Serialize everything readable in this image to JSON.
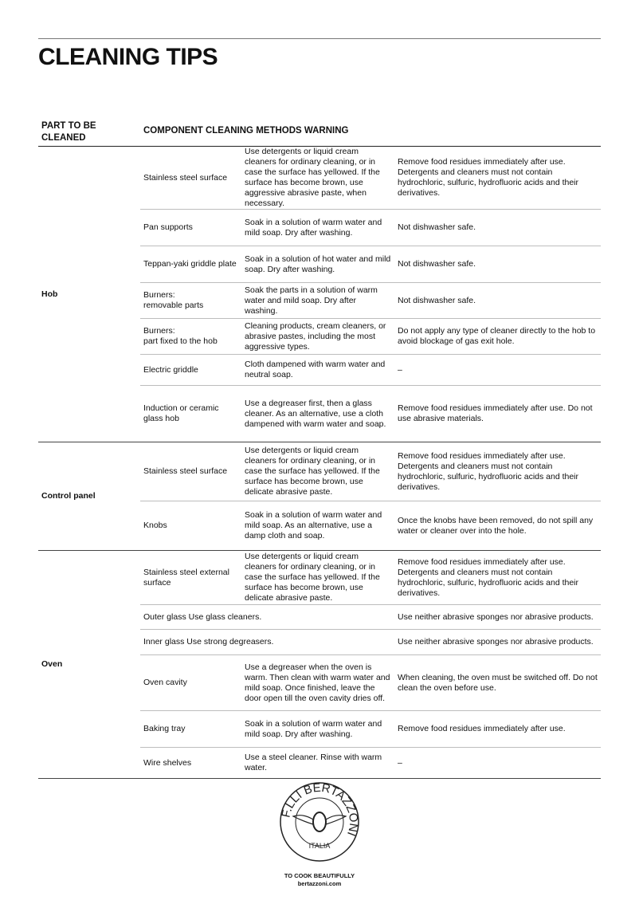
{
  "title": "CLEANING TIPS",
  "header": {
    "part": "PART TO BE CLEANED",
    "rest": "COMPONENT CLEANING METHODS WARNING"
  },
  "groups": [
    {
      "part": "Hob",
      "rows": [
        {
          "component": "Stainless steel surface",
          "method": "Use detergents or liquid cream cleaners for ordinary cleaning, or in case the surface has yellowed. If the surface has become brown, use aggressive abrasive paste, when necessary.",
          "warning": "Remove food residues immediately after use. Detergents and cleaners must not contain hydrochloric, sulfuric, hydrofluoric acids and their derivatives."
        },
        {
          "component": "Pan supports",
          "method": "Soak in a solution of warm water and mild soap. Dry after washing.",
          "warning": "Not dishwasher safe."
        },
        {
          "component": "Teppan-yaki griddle plate",
          "method": "Soak in a solution of hot water and mild soap. Dry after washing.",
          "warning": "Not dishwasher safe."
        },
        {
          "component": "Burners:\nremovable parts",
          "method": "Soak the parts in a solution of warm water and mild soap. Dry after washing.",
          "warning": "Not dishwasher safe."
        },
        {
          "component": "Burners:\npart fixed to the hob",
          "method": "Cleaning products, cream cleaners, or abrasive pastes, including the most aggressive types.",
          "warning": "Do not apply any type of cleaner directly to the hob to avoid blockage of gas exit hole."
        },
        {
          "component": "Electric griddle",
          "method": "Cloth dampened with warm water and neutral soap.",
          "warning": "–"
        },
        {
          "component": "Induction or ceramic glass hob",
          "method": "Use a degreaser first, then a glass cleaner. As an alternative, use a cloth dampened with warm water and soap.",
          "warning": "Remove food residues immediately after use. Do not use abrasive materials."
        }
      ]
    },
    {
      "part": "Control panel",
      "rows": [
        {
          "component": "Stainless steel surface",
          "method": "Use detergents or liquid cream cleaners for ordinary cleaning, or in case the surface has yellowed. If the surface has become brown, use delicate abrasive paste.",
          "warning": "Remove food residues immediately after use. Detergents and cleaners must not contain hydrochloric, sulfuric, hydrofluoric acids and their derivatives."
        },
        {
          "component": "Knobs",
          "method": "Soak in a solution of warm water and mild soap. As an alternative, use a damp cloth and soap.",
          "warning": "Once the knobs have been removed, do not spill any water or cleaner over into the hole."
        }
      ]
    },
    {
      "part": "Oven",
      "rows": [
        {
          "component": "Stainless steel external surface",
          "method": "Use detergents or liquid cream cleaners for ordinary cleaning, or in case the surface has yellowed. If the surface has become brown, use delicate abrasive paste.",
          "warning": "Remove food residues immediately after use. Detergents and cleaners must not contain hydrochloric, sulfuric, hydrofluoric acids and their derivatives."
        },
        {
          "component": "Outer glass Use glass cleaners.",
          "method": null,
          "warning": "Use neither abrasive sponges nor abrasive products."
        },
        {
          "component": "Inner glass Use strong degreasers.",
          "method": null,
          "warning": "Use neither abrasive sponges nor abrasive products."
        },
        {
          "component": "Oven cavity",
          "method": "Use a degreaser when the oven is warm. Then clean with warm water and mild soap. Once finished, leave the door open till the oven cavity dries off.",
          "warning": "When cleaning, the oven must be switched off. Do not clean the oven before use."
        },
        {
          "component": "Baking tray",
          "method": "Soak in a solution of warm water and mild soap. Dry after washing.",
          "warning": "Remove food residues immediately after use."
        },
        {
          "component": "Wire shelves",
          "method": "Use a steel cleaner. Rinse with warm water.",
          "warning": "–"
        }
      ]
    }
  ],
  "logo": {
    "text_top": "F.LLI BERTAZZONI",
    "text_bottom": "ITALIA"
  },
  "footer": {
    "tagline": "TO COOK BEAUTIFULLY",
    "website": "bertazzoni.com"
  }
}
